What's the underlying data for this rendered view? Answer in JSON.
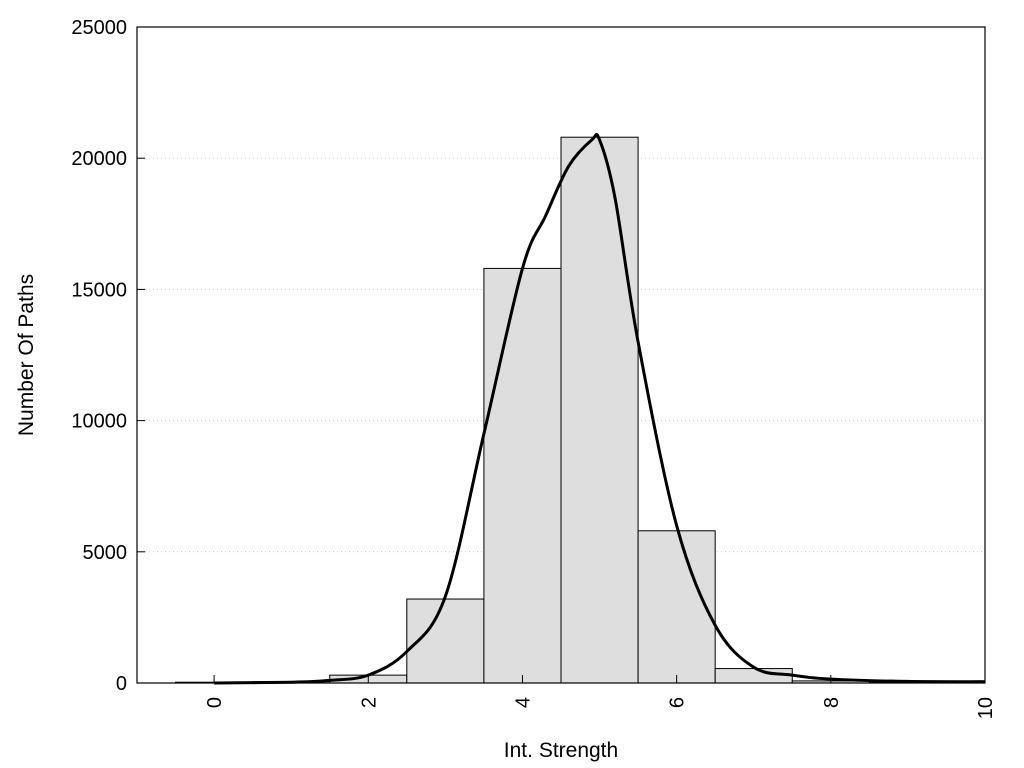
{
  "chart_data": {
    "type": "bar",
    "title": "",
    "xlabel": "Int. Strength",
    "ylabel": "Number Of Paths",
    "xlim": [
      -1,
      10
    ],
    "ylim": [
      0,
      25000
    ],
    "x_ticks": [
      0,
      2,
      4,
      6,
      8,
      10
    ],
    "y_ticks": [
      0,
      5000,
      10000,
      15000,
      20000,
      25000
    ],
    "grid": "horizontal dotted",
    "bar_color": "#dedede",
    "line_color": "#000000",
    "bins": [
      {
        "x": 0,
        "value": 30
      },
      {
        "x": 1,
        "value": 50
      },
      {
        "x": 2,
        "value": 300
      },
      {
        "x": 3,
        "value": 3200
      },
      {
        "x": 4,
        "value": 15800
      },
      {
        "x": 5,
        "value": 20800
      },
      {
        "x": 6,
        "value": 5800
      },
      {
        "x": 7,
        "value": 550
      },
      {
        "x": 8,
        "value": 80
      },
      {
        "x": 9,
        "value": 40
      }
    ],
    "curve": {
      "x": [
        0,
        1,
        1.5,
        2,
        2.5,
        3,
        3.5,
        4,
        4.3,
        4.6,
        4.9,
        5.0,
        5.2,
        5.5,
        6,
        6.5,
        7,
        7.5,
        8,
        9,
        10
      ],
      "y": [
        0,
        30,
        100,
        300,
        1200,
        3300,
        9500,
        15800,
        17800,
        19700,
        20700,
        20700,
        18500,
        13000,
        6000,
        2200,
        600,
        300,
        150,
        60,
        50
      ]
    }
  }
}
